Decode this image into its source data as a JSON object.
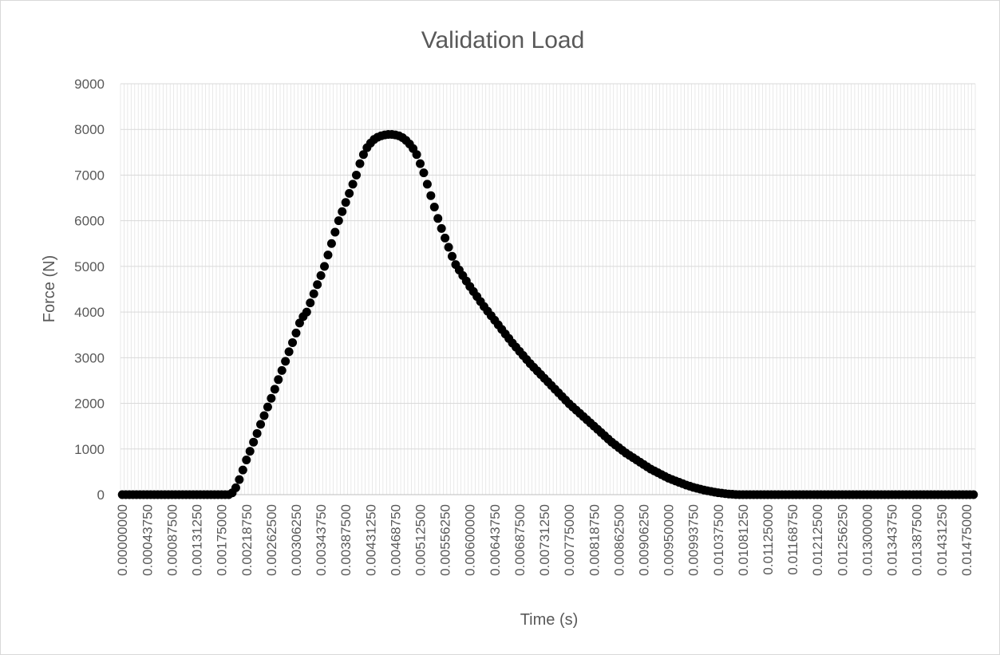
{
  "chart_data": {
    "type": "line",
    "title": "Validation Load",
    "x_label": "Time (s)",
    "y_label": "Force (N)",
    "categories": [
      "0.00000000",
      null,
      null,
      null,
      null,
      null,
      null,
      "0.00043750",
      null,
      null,
      null,
      null,
      null,
      null,
      "0.00087500",
      null,
      null,
      null,
      null,
      null,
      null,
      "0.00131250",
      null,
      null,
      null,
      null,
      null,
      null,
      "0.00175000",
      null,
      null,
      null,
      null,
      null,
      null,
      "0.00218750",
      null,
      null,
      null,
      null,
      null,
      null,
      "0.00262500",
      null,
      null,
      null,
      null,
      null,
      null,
      "0.00306250",
      null,
      null,
      null,
      null,
      null,
      null,
      "0.00343750",
      null,
      null,
      null,
      null,
      null,
      null,
      "0.00387500",
      null,
      null,
      null,
      null,
      null,
      null,
      "0.00431250",
      null,
      null,
      null,
      null,
      null,
      null,
      "0.00468750",
      null,
      null,
      null,
      null,
      null,
      null,
      "0.00512500",
      null,
      null,
      null,
      null,
      null,
      null,
      "0.00556250",
      null,
      null,
      null,
      null,
      null,
      null,
      "0.00600000",
      null,
      null,
      null,
      null,
      null,
      null,
      "0.00643750",
      null,
      null,
      null,
      null,
      null,
      null,
      "0.00687500",
      null,
      null,
      null,
      null,
      null,
      null,
      "0.00731250",
      null,
      null,
      null,
      null,
      null,
      null,
      "0.00775000",
      null,
      null,
      null,
      null,
      null,
      null,
      "0.00818750",
      null,
      null,
      null,
      null,
      null,
      null,
      "0.00862500",
      null,
      null,
      null,
      null,
      null,
      null,
      "0.00906250",
      null,
      null,
      null,
      null,
      null,
      null,
      "0.00950000",
      null,
      null,
      null,
      null,
      null,
      null,
      "0.00993750",
      null,
      null,
      null,
      null,
      null,
      null,
      "0.01037500",
      null,
      null,
      null,
      null,
      null,
      null,
      "0.01081250",
      null,
      null,
      null,
      null,
      null,
      null,
      "0.01125000",
      null,
      null,
      null,
      null,
      null,
      null,
      "0.01168750",
      null,
      null,
      null,
      null,
      null,
      null,
      "0.01212500",
      null,
      null,
      null,
      null,
      null,
      null,
      "0.01256250",
      null,
      null,
      null,
      null,
      null,
      null,
      "0.01300000",
      null,
      null,
      null,
      null,
      null,
      null,
      "0.01343750",
      null,
      null,
      null,
      null,
      null,
      null,
      "0.01387500",
      null,
      null,
      null,
      null,
      null,
      null,
      "0.01431250",
      null,
      null,
      null,
      null,
      null,
      null,
      "0.01475000",
      null,
      null
    ],
    "values": [
      0,
      0,
      0,
      0,
      0,
      0,
      0,
      0,
      0,
      0,
      0,
      0,
      0,
      0,
      0,
      0,
      0,
      0,
      0,
      0,
      0,
      0,
      0,
      0,
      0,
      0,
      0,
      0,
      0,
      0,
      0,
      40,
      150,
      330,
      540,
      760,
      950,
      1150,
      1340,
      1540,
      1730,
      1920,
      2110,
      2310,
      2520,
      2720,
      2920,
      3130,
      3330,
      3540,
      3760,
      3900,
      4000,
      4200,
      4400,
      4600,
      4800,
      5000,
      5250,
      5500,
      5750,
      6000,
      6200,
      6400,
      6600,
      6800,
      7000,
      7250,
      7450,
      7600,
      7700,
      7780,
      7830,
      7860,
      7880,
      7890,
      7890,
      7880,
      7860,
      7820,
      7760,
      7680,
      7580,
      7450,
      7250,
      7050,
      6800,
      6550,
      6300,
      6050,
      5830,
      5620,
      5420,
      5220,
      5040,
      4920,
      4800,
      4680,
      4560,
      4450,
      4340,
      4230,
      4120,
      4020,
      3920,
      3820,
      3720,
      3620,
      3520,
      3420,
      3320,
      3230,
      3140,
      3050,
      2960,
      2870,
      2790,
      2710,
      2630,
      2550,
      2470,
      2390,
      2310,
      2230,
      2150,
      2070,
      1990,
      1920,
      1850,
      1780,
      1710,
      1640,
      1570,
      1500,
      1430,
      1360,
      1290,
      1220,
      1150,
      1090,
      1030,
      970,
      910,
      860,
      810,
      760,
      710,
      660,
      610,
      560,
      520,
      480,
      440,
      400,
      360,
      330,
      300,
      270,
      240,
      210,
      185,
      160,
      140,
      120,
      100,
      85,
      70,
      55,
      42,
      32,
      22,
      14,
      8,
      3,
      0,
      0,
      0,
      0,
      0,
      0,
      0,
      0,
      0,
      0,
      0,
      0,
      0,
      0,
      0,
      0,
      0,
      0,
      0,
      0,
      0,
      0,
      0,
      0,
      0,
      0,
      0,
      0,
      0,
      0,
      0,
      0,
      0,
      0,
      0,
      0,
      0,
      0,
      0,
      0,
      0,
      0,
      0,
      0,
      0,
      0,
      0,
      0,
      0,
      0,
      0,
      0,
      0,
      0,
      0,
      0,
      0,
      0,
      0,
      0,
      0,
      0,
      0,
      0,
      0,
      0,
      0
    ],
    "color": "#000000",
    "ylim": [
      0,
      9000
    ],
    "yticks": [
      0,
      1000,
      2000,
      3000,
      4000,
      5000,
      6000,
      7000,
      8000,
      9000
    ],
    "grid": true
  }
}
